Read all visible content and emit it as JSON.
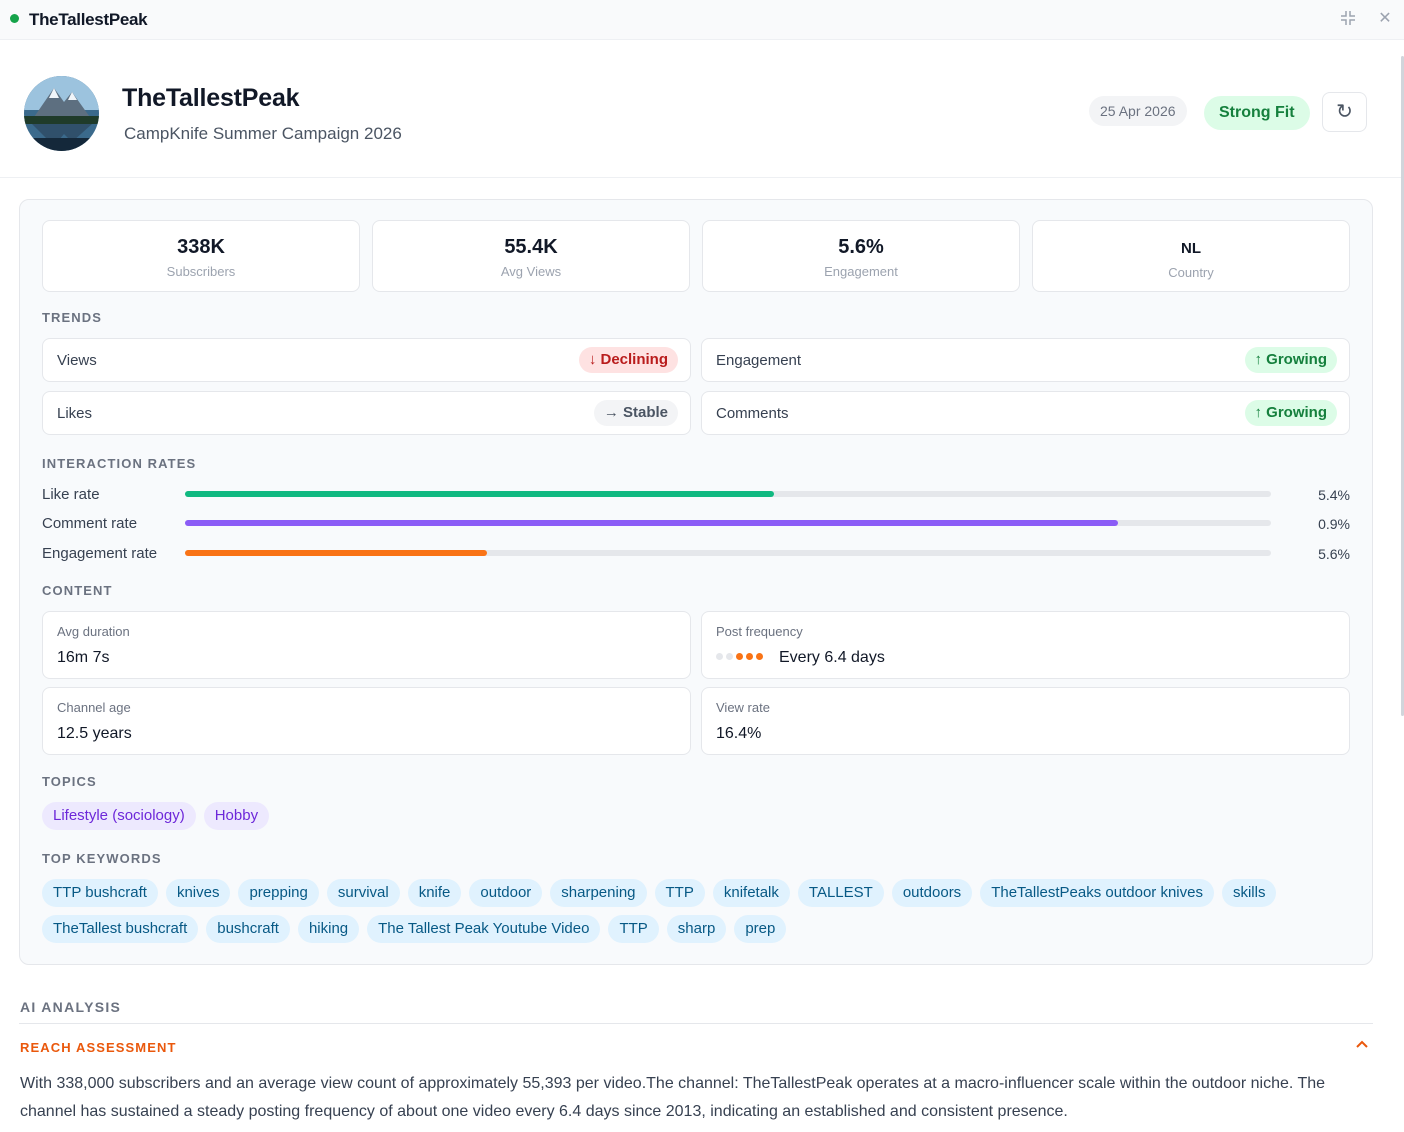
{
  "window": {
    "title": "TheTallestPeak"
  },
  "header": {
    "name": "TheTallestPeak",
    "campaign": "CampKnife Summer Campaign 2026",
    "date": "25 Apr 2026",
    "fit": "Strong Fit",
    "refresh_icon": "↻"
  },
  "stats": [
    {
      "value": "338K",
      "label": "Subscribers"
    },
    {
      "value": "55.4K",
      "label": "Avg Views"
    },
    {
      "value": "5.6%",
      "label": "Engagement"
    },
    {
      "value": "NL",
      "label": "Country"
    }
  ],
  "trends": {
    "title": "TRENDS",
    "items": [
      {
        "label": "Views",
        "status": "↓ Declining",
        "tone": "red"
      },
      {
        "label": "Engagement",
        "status": "↑ Growing",
        "tone": "green"
      },
      {
        "label": "Likes",
        "status": "→ Stable",
        "tone": "gray"
      },
      {
        "label": "Comments",
        "status": "↑ Growing",
        "tone": "green"
      }
    ]
  },
  "interaction": {
    "title": "INTERACTION RATES",
    "rows": [
      {
        "label": "Like rate",
        "value": "5.4%",
        "fill": 0.542,
        "color": "#10b981"
      },
      {
        "label": "Comment rate",
        "value": "0.9%",
        "fill": 0.859,
        "color": "#8b5cf6"
      },
      {
        "label": "Engagement rate",
        "value": "5.6%",
        "fill": 0.278,
        "color": "#f97316"
      }
    ]
  },
  "content": {
    "title": "CONTENT",
    "avg_duration": {
      "label": "Avg duration",
      "value": "16m 7s"
    },
    "post_frequency": {
      "label": "Post frequency",
      "value": "Every 6.4 days",
      "dots_active": 3,
      "dots_total": 5,
      "active_color": "#f97316",
      "inactive_color": "#e5e7eb"
    },
    "channel_age": {
      "label": "Channel age",
      "value": "12.5 years"
    },
    "view_rate": {
      "label": "View rate",
      "value": "16.4%"
    }
  },
  "topics": {
    "title": "TOPICS",
    "items": [
      "Lifestyle (sociology)",
      "Hobby"
    ]
  },
  "keywords": {
    "title": "TOP KEYWORDS",
    "items": [
      "TTP bushcraft",
      "knives",
      "prepping",
      "survival",
      "knife",
      "outdoor",
      "sharpening",
      "TTP",
      "knifetalk",
      "TALLEST",
      "outdoors",
      "TheTallestPeaks outdoor knives",
      "skills",
      "TheTallest bushcraft",
      "bushcraft",
      "hiking",
      "The Tallest Peak Youtube Video",
      "TTP",
      "sharp",
      "prep"
    ]
  },
  "ai": {
    "title": "AI ANALYSIS",
    "reach": {
      "title": "REACH ASSESSMENT",
      "text": "With 338,000 subscribers and an average view count of approximately 55,393 per video.The channel: TheTallestPeak operates at a macro-influencer scale within the outdoor niche. The channel has sustained a steady posting frequency of about one video every 6.4 days since 2013, indicating an established and consistent presence."
    }
  },
  "colors": {
    "accent_orange": "#ea580c",
    "green": "#16a34a"
  }
}
